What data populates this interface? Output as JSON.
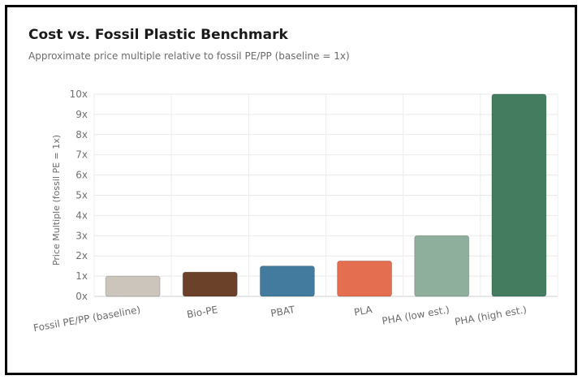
{
  "header": {
    "title": "Cost vs. Fossil Plastic Benchmark",
    "subtitle": "Approximate price multiple relative to fossil PE/PP (baseline = 1x)"
  },
  "chart_data": {
    "type": "bar",
    "title": "Cost vs. Fossil Plastic Benchmark",
    "subtitle": "Approximate price multiple relative to fossil PE/PP (baseline = 1x)",
    "xlabel": "",
    "ylabel": "Price Multiple (fossil PE = 1x)",
    "categories": [
      "Fossil PE/PP (baseline)",
      "Bio-PE",
      "PBAT",
      "PLA",
      "PHA (low est.)",
      "PHA (high est.)"
    ],
    "values": [
      1,
      1.2,
      1.5,
      1.75,
      3,
      10
    ],
    "colors": [
      "#cbc5bc",
      "#6b4129",
      "#437b9e",
      "#e46e50",
      "#8daf9c",
      "#437c5e"
    ],
    "ylim": [
      0,
      10
    ],
    "yticks": [
      "0x",
      "1x",
      "2x",
      "3x",
      "4x",
      "5x",
      "6x",
      "7x",
      "8x",
      "9x",
      "10x"
    ],
    "grid": true,
    "legend": "none"
  }
}
